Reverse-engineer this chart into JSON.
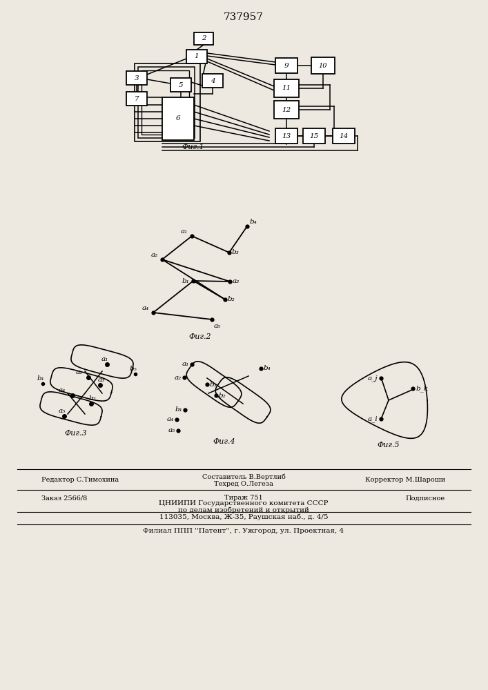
{
  "title": "737957",
  "bg_color": "#ede9e0",
  "fig1_label": "Фиг.1",
  "fig2_label": "Фиг.2",
  "fig3_label": "Фиг.3",
  "fig4_label": "Фиг.4",
  "fig5_label": "Фиг.5",
  "footer_editor": "Редактор С.Тимохина",
  "footer_compiler": "Составитель В.Вертлиб",
  "footer_techred": "Техред О.Легеза",
  "footer_corrector": "Корректор М.Шароши",
  "footer_order": "Заказ 2566/8",
  "footer_tirazh": "Тираж 751",
  "footer_podpisnoe": "Подписное",
  "footer_cniip1": "ЦНИИПИ Государственного комитета СССР",
  "footer_cniip2": "по делам изобретений и открытий",
  "footer_cniip3": "113035, Москва, Ж-35, Раушская наб., д. 4/5",
  "footer_filial": "Филиал ППП ''Патент'', г. Ужгород, ул. Проектная, 4"
}
